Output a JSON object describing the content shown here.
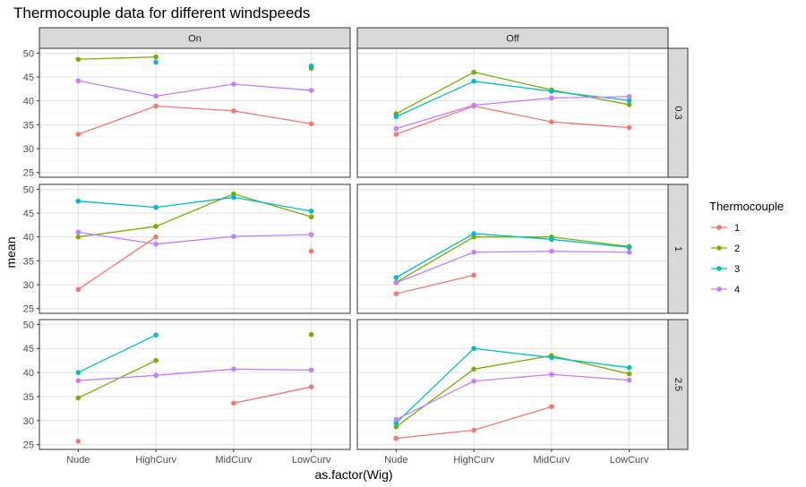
{
  "chart_data": {
    "type": "line",
    "title": "Thermocouple data for different windspeeds",
    "xlabel": "as.factor(Wig)",
    "ylabel": "mean",
    "categories": [
      "Nude",
      "HighCurv",
      "MidCurv",
      "LowCurv"
    ],
    "yticks": [
      25,
      30,
      35,
      40,
      45,
      50
    ],
    "ylim": [
      24,
      51
    ],
    "grid": true,
    "columns": [
      "On",
      "Off"
    ],
    "rows": [
      "0.3",
      "1",
      "2.5"
    ],
    "legend": {
      "title": "Thermocouple",
      "placement": "right",
      "entries": [
        "1",
        "2",
        "3",
        "4"
      ]
    },
    "series_colors": {
      "1": "#F8766D",
      "2": "#7CAE00",
      "3": "#00BFC4",
      "4": "#C77CFF"
    },
    "panels": [
      {
        "row": "0.3",
        "column": "On",
        "series": [
          {
            "name": "1",
            "values": [
              33.0,
              38.9,
              37.9,
              35.2
            ]
          },
          {
            "name": "2",
            "values": [
              48.7,
              49.2,
              null,
              46.8
            ]
          },
          {
            "name": "3",
            "values": [
              null,
              48.1,
              null,
              47.3
            ]
          },
          {
            "name": "4",
            "values": [
              44.2,
              41.0,
              43.5,
              42.2
            ]
          }
        ]
      },
      {
        "row": "0.3",
        "column": "Off",
        "series": [
          {
            "name": "1",
            "values": [
              33.0,
              38.9,
              35.6,
              34.4
            ]
          },
          {
            "name": "2",
            "values": [
              37.3,
              46.0,
              42.3,
              39.2
            ]
          },
          {
            "name": "3",
            "values": [
              36.7,
              44.1,
              42.0,
              40.1
            ]
          },
          {
            "name": "4",
            "values": [
              34.2,
              39.1,
              40.6,
              40.9
            ]
          }
        ]
      },
      {
        "row": "1",
        "column": "On",
        "series": [
          {
            "name": "1",
            "values": [
              29.0,
              40.0,
              null,
              37.0
            ]
          },
          {
            "name": "2",
            "values": [
              40.0,
              42.2,
              49.0,
              44.2
            ]
          },
          {
            "name": "3",
            "values": [
              47.5,
              46.2,
              48.3,
              45.4
            ]
          },
          {
            "name": "4",
            "values": [
              41.0,
              38.5,
              40.1,
              40.5
            ]
          }
        ]
      },
      {
        "row": "1",
        "column": "Off",
        "series": [
          {
            "name": "1",
            "values": [
              28.1,
              32.0,
              null,
              null
            ]
          },
          {
            "name": "2",
            "values": [
              30.5,
              40.0,
              40.0,
              38.0
            ]
          },
          {
            "name": "3",
            "values": [
              31.5,
              40.7,
              39.5,
              37.8
            ]
          },
          {
            "name": "4",
            "values": [
              30.4,
              36.8,
              37.0,
              36.8
            ]
          }
        ]
      },
      {
        "row": "2.5",
        "column": "On",
        "series": [
          {
            "name": "1",
            "values": [
              25.7,
              null,
              33.6,
              37.0
            ]
          },
          {
            "name": "2",
            "values": [
              34.7,
              42.5,
              null,
              47.9
            ]
          },
          {
            "name": "3",
            "values": [
              40.0,
              47.8,
              null,
              null
            ]
          },
          {
            "name": "4",
            "values": [
              38.3,
              39.4,
              40.7,
              40.5
            ]
          }
        ]
      },
      {
        "row": "2.5",
        "column": "Off",
        "series": [
          {
            "name": "1",
            "values": [
              26.3,
              28.0,
              32.9,
              null
            ]
          },
          {
            "name": "2",
            "values": [
              28.7,
              40.7,
              43.5,
              39.7
            ]
          },
          {
            "name": "3",
            "values": [
              29.5,
              45.0,
              43.1,
              41.0
            ]
          },
          {
            "name": "4",
            "values": [
              30.2,
              38.2,
              39.6,
              38.4
            ]
          }
        ]
      }
    ]
  }
}
